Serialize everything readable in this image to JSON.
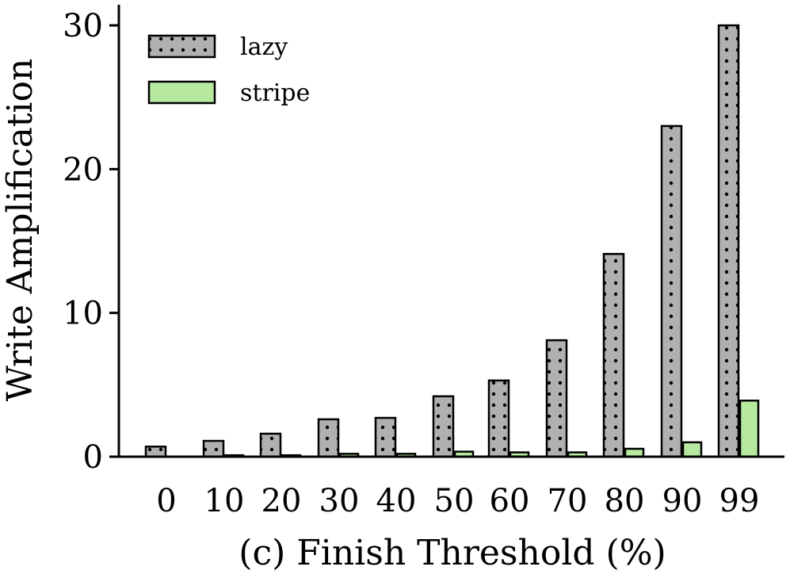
{
  "chart_data": {
    "type": "bar",
    "categories": [
      "0",
      "10",
      "20",
      "30",
      "40",
      "50",
      "60",
      "70",
      "80",
      "90",
      "99"
    ],
    "series": [
      {
        "name": "lazy",
        "values": [
          0.7,
          1.1,
          1.6,
          2.6,
          2.7,
          4.2,
          5.3,
          8.1,
          14.1,
          23.0,
          30.0
        ],
        "color": "#b0b0b0",
        "pattern": "dots"
      },
      {
        "name": "stripe",
        "values": [
          0.0,
          0.1,
          0.1,
          0.2,
          0.2,
          0.35,
          0.3,
          0.3,
          0.55,
          1.0,
          3.9
        ],
        "color": "#b6e8a0",
        "pattern": "solid"
      }
    ],
    "title": "",
    "xlabel": "(c) Finish Threshold (%)",
    "ylabel": "Write Amplification",
    "ylim": [
      0,
      30
    ],
    "yticks": [
      "0",
      "10",
      "20",
      "30"
    ],
    "grid": false,
    "legend_position": "top-left"
  }
}
